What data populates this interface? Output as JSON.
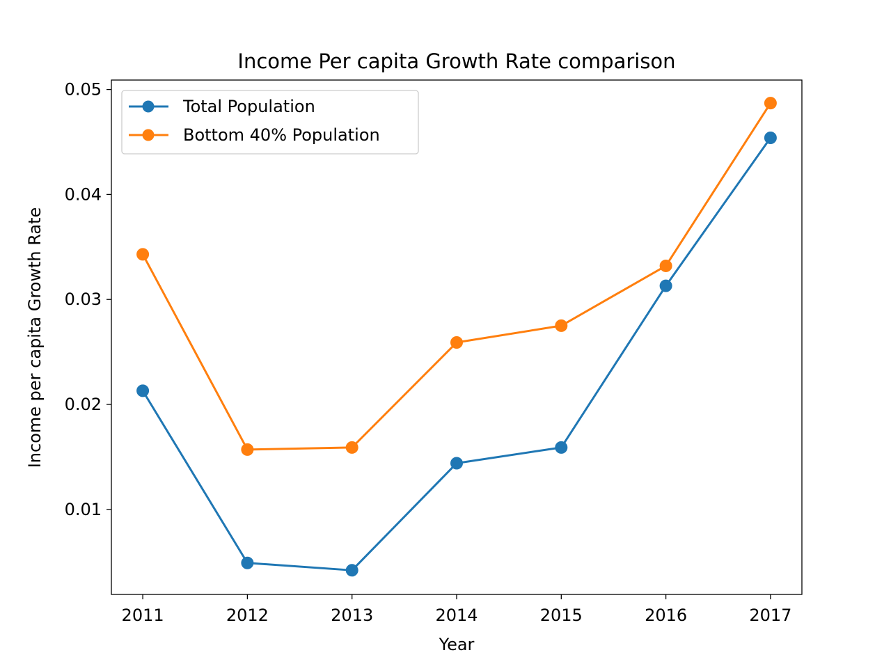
{
  "chart_data": {
    "type": "line",
    "title": "Income Per capita Growth Rate comparison",
    "xlabel": "Year",
    "ylabel": "Income per capita Growth Rate",
    "x": [
      "2011",
      "2012",
      "2013",
      "2014",
      "2015",
      "2016",
      "2017"
    ],
    "xlim": [
      2010.7,
      2017.3
    ],
    "ylim": [
      0.0019,
      0.0509
    ],
    "yticks": [
      "0.01",
      "0.02",
      "0.03",
      "0.04",
      "0.05"
    ],
    "grid": false,
    "legend_position": "upper-left",
    "series": [
      {
        "name": "Total Population",
        "color": "#1f77b4",
        "marker": "circle",
        "values": [
          0.0213,
          0.0049,
          0.0042,
          0.0144,
          0.0159,
          0.0313,
          0.0454
        ]
      },
      {
        "name": "Bottom 40% Population",
        "color": "#ff7f0e",
        "marker": "circle",
        "values": [
          0.0343,
          0.0157,
          0.0159,
          0.0259,
          0.0275,
          0.0332,
          0.0487
        ]
      }
    ]
  }
}
